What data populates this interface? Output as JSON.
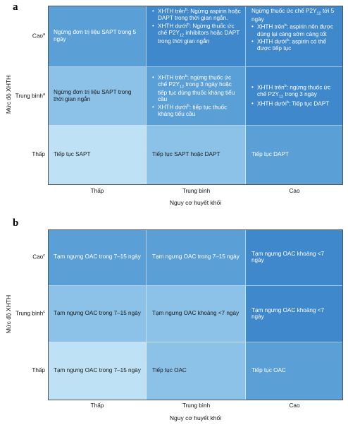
{
  "panels": [
    {
      "label": "a",
      "y_axis_title": "Mức độ XHTH",
      "x_axis_title": "Nguy cơ huyết khối",
      "columns": [
        "Thấp",
        "Trung bình",
        "Cao"
      ],
      "rows": [
        {
          "label": [
            {
              "text": "Cao"
            },
            {
              "sup": "a"
            }
          ],
          "cells": [
            [
              {
                "segments": [
                  {
                    "text": "Ngừng đơn trị liệu SAPT trong 5 ngày"
                  }
                ]
              }
            ],
            [
              {
                "bullet": true,
                "segments": [
                  {
                    "text": "XHTH trên"
                  },
                  {
                    "sup": "b"
                  },
                  {
                    "text": ": Ngừng aspirin hoặc DAPT trong thời gian ngắn."
                  }
                ]
              },
              {
                "bullet": true,
                "segments": [
                  {
                    "text": "XHTH dưới"
                  },
                  {
                    "sup": "b"
                  },
                  {
                    "text": ": Ngừng thuốc ức chế P2Y"
                  },
                  {
                    "sub": "12"
                  },
                  {
                    "text": " inhibitors hoặc DAPT trong thời gian ngắn"
                  }
                ]
              }
            ],
            [
              {
                "segments": [
                  {
                    "text": "Ngừng thuốc ức chế P2Y"
                  },
                  {
                    "sub": "12"
                  },
                  {
                    "text": " tới 5 ngày"
                  }
                ]
              },
              {
                "bullet": true,
                "segments": [
                  {
                    "text": "XHTH trên"
                  },
                  {
                    "sup": "b"
                  },
                  {
                    "text": ": aspirin nên được dùng lại càng sớm càng tốt"
                  }
                ]
              },
              {
                "bullet": true,
                "segments": [
                  {
                    "text": "XHTH dưới"
                  },
                  {
                    "sup": "b"
                  },
                  {
                    "text": ": aspirin có thể được tiếp tục"
                  }
                ]
              }
            ]
          ]
        },
        {
          "label": [
            {
              "text": "Trung bình"
            },
            {
              "sup": "a"
            }
          ],
          "cells": [
            [
              {
                "segments": [
                  {
                    "text": "Ngừng đơn trị liệu SAPT trong thời gian ngắn"
                  }
                ]
              }
            ],
            [
              {
                "bullet": true,
                "segments": [
                  {
                    "text": "XHTH trên"
                  },
                  {
                    "sup": "b"
                  },
                  {
                    "text": ": ngừng thuốc ức chế P2Y"
                  },
                  {
                    "sub": "12"
                  },
                  {
                    "text": " trong 3 ngày hoặc tiếp tục dùng thuốc kháng tiểu cầu"
                  }
                ]
              },
              {
                "bullet": true,
                "segments": [
                  {
                    "text": "XHTH dưới"
                  },
                  {
                    "sup": "b"
                  },
                  {
                    "text": ": tiếp tục thuốc kháng tiểu cầu"
                  }
                ]
              }
            ],
            [
              {
                "bullet": true,
                "segments": [
                  {
                    "text": "XHTH trên"
                  },
                  {
                    "sup": "b"
                  },
                  {
                    "text": ": ngừng thuốc ức chế P2Y"
                  },
                  {
                    "sub": "12"
                  },
                  {
                    "text": " trong 3 ngày"
                  }
                ]
              },
              {
                "bullet": true,
                "segments": [
                  {
                    "text": "XHTH dưới"
                  },
                  {
                    "sup": "b"
                  },
                  {
                    "text": ": Tiếp tục DAPT"
                  }
                ]
              }
            ]
          ]
        },
        {
          "label": [
            {
              "text": "Thấp"
            }
          ],
          "cells": [
            [
              {
                "segments": [
                  {
                    "text": "Tiếp tục SAPT"
                  }
                ]
              }
            ],
            [
              {
                "segments": [
                  {
                    "text": "Tiếp tục SAPT hoặc DAPT"
                  }
                ]
              }
            ],
            [
              {
                "segments": [
                  {
                    "text": "Tiếp tục DAPT"
                  }
                ]
              }
            ]
          ]
        }
      ]
    },
    {
      "label": "b",
      "y_axis_title": "Mức độ XHTH",
      "x_axis_title": "Nguy cơ huyết khối",
      "columns": [
        "Thấp",
        "Trung bình",
        "Cao"
      ],
      "rows": [
        {
          "label": [
            {
              "text": "Cao"
            },
            {
              "sup": "c"
            }
          ],
          "cells": [
            [
              {
                "segments": [
                  {
                    "text": "Tạm ngưng OAC trong 7–15 ngày"
                  }
                ]
              }
            ],
            [
              {
                "segments": [
                  {
                    "text": "Tạm ngưng OAC trong 7–15 ngày"
                  }
                ]
              }
            ],
            [
              {
                "segments": [
                  {
                    "text": "Tạm ngưng OAC khoảng <7 ngày"
                  }
                ]
              }
            ]
          ]
        },
        {
          "label": [
            {
              "text": "Trung bình"
            },
            {
              "sup": "c"
            }
          ],
          "cells": [
            [
              {
                "segments": [
                  {
                    "text": "Tạm ngưng OAC trong 7–15 ngày"
                  }
                ]
              }
            ],
            [
              {
                "segments": [
                  {
                    "text": "Tạm ngưng OAC khoảng <7 ngày"
                  }
                ]
              }
            ],
            [
              {
                "segments": [
                  {
                    "text": "Tạm ngưng OAC khoảng <7 ngày"
                  }
                ]
              }
            ]
          ]
        },
        {
          "label": [
            {
              "text": "Thấp"
            }
          ],
          "cells": [
            [
              {
                "segments": [
                  {
                    "text": "Tạm ngưng OAC trong 7–15 ngày"
                  }
                ]
              }
            ],
            [
              {
                "segments": [
                  {
                    "text": "Tiếp tục OAC"
                  }
                ]
              }
            ],
            [
              {
                "segments": [
                  {
                    "text": "Tiếp tục OAC"
                  }
                ]
              }
            ]
          ]
        }
      ]
    }
  ]
}
